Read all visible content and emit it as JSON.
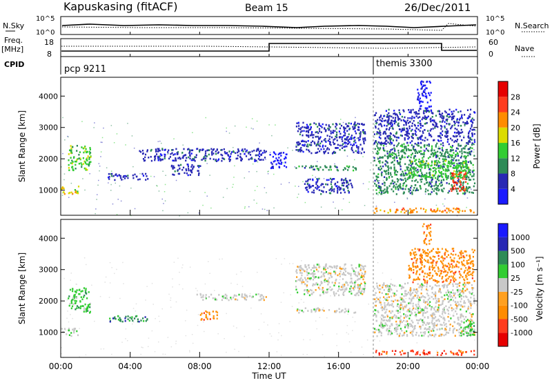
{
  "header": {
    "station": "Kapuskasing (fitACF)",
    "beam": "Beam 15",
    "date": "26/Dec/2011"
  },
  "params": {
    "nsky_label": "N.Sky",
    "nsky_ticks": [
      "10^5",
      "10^0"
    ],
    "nsearch_label": "N.Search",
    "nsearch_ticks": [
      "10^5",
      "10^0"
    ],
    "freq_label_1": "Freq.",
    "freq_label_2": "[MHz]",
    "freq_ticks": [
      "18",
      "8"
    ],
    "nave_label": "Nave",
    "nave_ticks": [
      "60",
      "0"
    ],
    "cpid_label": "CPID",
    "programs": [
      {
        "name": "pcp 9211",
        "start_hour": 0
      },
      {
        "name": "themis 3300",
        "start_hour": 18
      }
    ]
  },
  "chart_data": [
    {
      "type": "heatmap",
      "panel": "power",
      "ylabel": "Slant Range [km]",
      "y_ticks": [
        1000,
        2000,
        3000,
        4000
      ],
      "ylim": [
        200,
        4600
      ],
      "xlim": [
        0,
        24
      ],
      "colorbar": {
        "label": "Power [dB]",
        "ticks": [
          "4",
          "8",
          "12",
          "16",
          "20",
          "24",
          "28"
        ],
        "colors": [
          "#1a1aff",
          "#2828b4",
          "#2e8b57",
          "#32cd32",
          "#dcdc00",
          "#ff8c00",
          "#ff3c1e",
          "#e60000"
        ]
      },
      "patches": [
        {
          "x0": 0.0,
          "x1": 1.0,
          "y0": 900,
          "y1": 1150,
          "level": 4
        },
        {
          "x0": 0.4,
          "x1": 1.7,
          "y0": 1650,
          "y1": 2450,
          "level": 3
        },
        {
          "x0": 2.7,
          "x1": 5.0,
          "y0": 1350,
          "y1": 1550,
          "level": 1
        },
        {
          "x0": 4.5,
          "x1": 11.8,
          "y0": 1950,
          "y1": 2350,
          "level": 1
        },
        {
          "x0": 6.3,
          "x1": 8.0,
          "y0": 1500,
          "y1": 1850,
          "level": 1
        },
        {
          "x0": 12.0,
          "x1": 13.0,
          "y0": 1700,
          "y1": 2250,
          "level": 0
        },
        {
          "x0": 13.5,
          "x1": 17.0,
          "y0": 1650,
          "y1": 1800,
          "level": 2
        },
        {
          "x0": 13.5,
          "x1": 17.5,
          "y0": 2200,
          "y1": 3200,
          "level": 1
        },
        {
          "x0": 14.0,
          "x1": 16.8,
          "y0": 900,
          "y1": 1400,
          "level": 1
        },
        {
          "x0": 18.0,
          "x1": 23.8,
          "y0": 900,
          "y1": 2500,
          "level": 2
        },
        {
          "x0": 20.0,
          "x1": 23.5,
          "y0": 1400,
          "y1": 2000,
          "level": 3
        },
        {
          "x0": 22.4,
          "x1": 23.3,
          "y0": 1000,
          "y1": 1600,
          "level": 6
        },
        {
          "x0": 18.0,
          "x1": 23.8,
          "y0": 2500,
          "y1": 3600,
          "level": 1
        },
        {
          "x0": 20.5,
          "x1": 21.3,
          "y0": 3600,
          "y1": 4500,
          "level": 0
        },
        {
          "x0": 18.0,
          "x1": 23.8,
          "y0": 300,
          "y1": 450,
          "level": 5
        }
      ]
    },
    {
      "type": "heatmap",
      "panel": "velocity",
      "xlabel": "Time UT",
      "ylabel": "Slant Range [km]",
      "x_ticks": [
        "00:00",
        "04:00",
        "08:00",
        "12:00",
        "16:00",
        "20:00",
        "00:00"
      ],
      "y_ticks": [
        1000,
        2000,
        3000,
        4000
      ],
      "ylim": [
        200,
        4600
      ],
      "xlim": [
        0,
        24
      ],
      "colorbar": {
        "label": "Velocity [m s⁻¹]",
        "ticks": [
          "-1000",
          "-500",
          "-100",
          "-25",
          "25",
          "100",
          "500",
          "1000"
        ],
        "colors": [
          "#e60000",
          "#ff3c1e",
          "#ff8c00",
          "#ffa020",
          "#c8c8c8",
          "#32cd32",
          "#2e8b57",
          "#2828b4",
          "#1a1aff"
        ]
      },
      "patches": [
        {
          "x0": 0.0,
          "x1": 1.0,
          "y0": 900,
          "y1": 1150,
          "level": 4
        },
        {
          "x0": 0.4,
          "x1": 1.7,
          "y0": 1650,
          "y1": 2450,
          "level": 5
        },
        {
          "x0": 2.7,
          "x1": 5.0,
          "y0": 1350,
          "y1": 1550,
          "level": 6
        },
        {
          "x0": 7.8,
          "x1": 11.8,
          "y0": 2050,
          "y1": 2250,
          "level": 4
        },
        {
          "x0": 8.0,
          "x1": 9.0,
          "y0": 1400,
          "y1": 1700,
          "level": 2
        },
        {
          "x0": 13.5,
          "x1": 17.0,
          "y0": 1650,
          "y1": 1800,
          "level": 4
        },
        {
          "x0": 13.5,
          "x1": 17.5,
          "y0": 2200,
          "y1": 3200,
          "level": 4
        },
        {
          "x0": 18.0,
          "x1": 23.8,
          "y0": 900,
          "y1": 2600,
          "level": 4
        },
        {
          "x0": 20.0,
          "x1": 23.8,
          "y0": 2600,
          "y1": 3700,
          "level": 2
        },
        {
          "x0": 20.8,
          "x1": 21.3,
          "y0": 3800,
          "y1": 4500,
          "level": 2
        },
        {
          "x0": 23.0,
          "x1": 23.8,
          "y0": 900,
          "y1": 1400,
          "level": 5
        },
        {
          "x0": 18.0,
          "x1": 23.8,
          "y0": 300,
          "y1": 450,
          "level": 1
        }
      ]
    }
  ]
}
